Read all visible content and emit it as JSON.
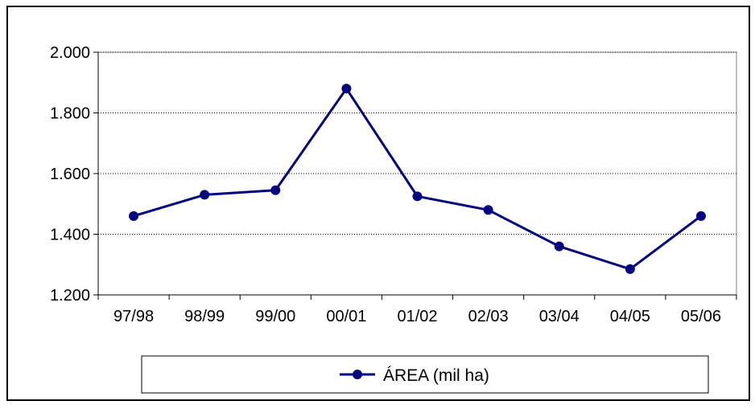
{
  "chart_data": {
    "type": "line",
    "categories": [
      "97/98",
      "98/99",
      "99/00",
      "00/01",
      "01/02",
      "02/03",
      "03/04",
      "04/05",
      "05/06"
    ],
    "series": [
      {
        "name": "ÁREA (mil ha)",
        "values": [
          1460,
          1530,
          1545,
          1880,
          1525,
          1480,
          1360,
          1285,
          1460
        ],
        "color": "#000080"
      }
    ],
    "yticks": [
      "1.200",
      "1.400",
      "1.600",
      "1.800",
      "2.000"
    ],
    "ytick_values": [
      1200,
      1400,
      1600,
      1800,
      2000
    ],
    "ylim": [
      1200,
      2000
    ],
    "title": "",
    "xlabel": "",
    "ylabel": "",
    "grid": true,
    "legend_position": "bottom"
  }
}
